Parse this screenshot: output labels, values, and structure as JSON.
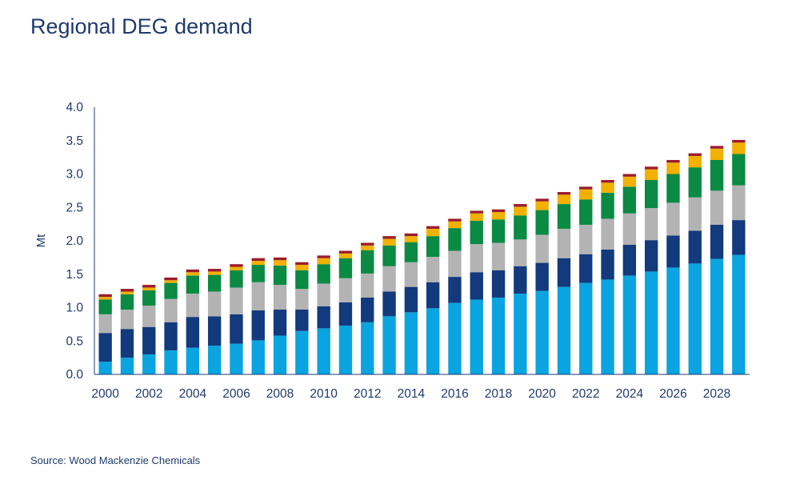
{
  "title": "Regional DEG demand",
  "source": "Source: Wood Mackenzie Chemicals",
  "chart_data": {
    "type": "bar",
    "stacked": true,
    "title": "Regional DEG demand",
    "xlabel": "",
    "ylabel": "Mt",
    "ylim": [
      0,
      4.0
    ],
    "yticks": [
      "0.0",
      "0.5",
      "1.0",
      "1.5",
      "2.0",
      "2.5",
      "3.0",
      "3.5",
      "4.0"
    ],
    "xtick_labels": [
      "2000",
      "2002",
      "2004",
      "2006",
      "2008",
      "2010",
      "2012",
      "2014",
      "2016",
      "2018",
      "2020",
      "2022",
      "2024",
      "2026",
      "2028"
    ],
    "grid": false,
    "legend": "none",
    "categories": [
      "2000",
      "2001",
      "2002",
      "2003",
      "2004",
      "2005",
      "2006",
      "2007",
      "2008",
      "2009",
      "2010",
      "2011",
      "2012",
      "2013",
      "2014",
      "2015",
      "2016",
      "2017",
      "2018",
      "2019",
      "2020",
      "2021",
      "2022",
      "2023",
      "2024",
      "2025",
      "2026",
      "2027",
      "2028",
      "2029"
    ],
    "series": [
      {
        "color": "#0aa4e0",
        "values": [
          0.19,
          0.25,
          0.3,
          0.36,
          0.4,
          0.43,
          0.46,
          0.51,
          0.58,
          0.65,
          0.69,
          0.73,
          0.78,
          0.87,
          0.93,
          0.99,
          1.07,
          1.12,
          1.15,
          1.21,
          1.25,
          1.31,
          1.37,
          1.42,
          1.48,
          1.54,
          1.6,
          1.66,
          1.73,
          1.79
        ]
      },
      {
        "color": "#123a7d",
        "values": [
          0.43,
          0.43,
          0.41,
          0.42,
          0.46,
          0.44,
          0.44,
          0.45,
          0.39,
          0.32,
          0.33,
          0.35,
          0.37,
          0.37,
          0.38,
          0.39,
          0.39,
          0.41,
          0.41,
          0.41,
          0.42,
          0.43,
          0.43,
          0.45,
          0.46,
          0.47,
          0.48,
          0.49,
          0.51,
          0.52
        ]
      },
      {
        "color": "#b3b3b3",
        "values": [
          0.28,
          0.29,
          0.32,
          0.35,
          0.35,
          0.37,
          0.4,
          0.42,
          0.37,
          0.31,
          0.34,
          0.36,
          0.36,
          0.38,
          0.37,
          0.38,
          0.39,
          0.42,
          0.41,
          0.4,
          0.42,
          0.44,
          0.44,
          0.46,
          0.47,
          0.48,
          0.49,
          0.5,
          0.51,
          0.52
        ]
      },
      {
        "color": "#0a8a43",
        "values": [
          0.22,
          0.23,
          0.23,
          0.24,
          0.27,
          0.25,
          0.26,
          0.26,
          0.29,
          0.28,
          0.29,
          0.3,
          0.35,
          0.31,
          0.3,
          0.31,
          0.34,
          0.35,
          0.35,
          0.36,
          0.37,
          0.37,
          0.38,
          0.39,
          0.4,
          0.42,
          0.43,
          0.45,
          0.46,
          0.47
        ]
      },
      {
        "color": "#f2b000",
        "values": [
          0.04,
          0.04,
          0.04,
          0.04,
          0.05,
          0.05,
          0.05,
          0.06,
          0.08,
          0.08,
          0.09,
          0.07,
          0.07,
          0.1,
          0.09,
          0.11,
          0.1,
          0.11,
          0.11,
          0.13,
          0.13,
          0.14,
          0.15,
          0.15,
          0.15,
          0.16,
          0.17,
          0.17,
          0.17,
          0.17
        ]
      },
      {
        "color": "#9b1b2e",
        "values": [
          0.04,
          0.04,
          0.04,
          0.04,
          0.04,
          0.04,
          0.04,
          0.04,
          0.04,
          0.04,
          0.04,
          0.04,
          0.04,
          0.04,
          0.04,
          0.04,
          0.04,
          0.04,
          0.04,
          0.04,
          0.04,
          0.04,
          0.04,
          0.04,
          0.04,
          0.04,
          0.04,
          0.04,
          0.04,
          0.04
        ]
      }
    ]
  }
}
